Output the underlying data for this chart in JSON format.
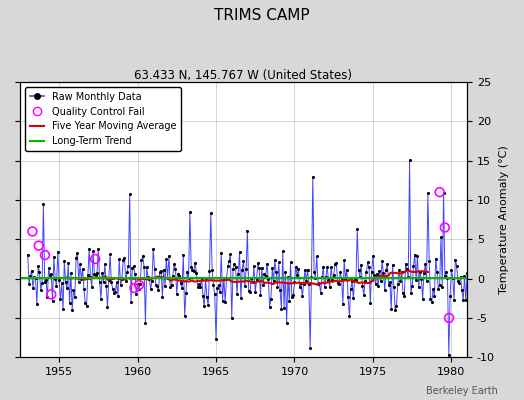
{
  "title": "TRIMS CAMP",
  "subtitle": "63.433 N, 145.767 W (United States)",
  "ylabel": "Temperature Anomaly (°C)",
  "watermark": "Berkeley Earth",
  "xlim": [
    1952.5,
    1981.0
  ],
  "ylim": [
    -10,
    25
  ],
  "yticks_left": [
    -10,
    -5,
    0,
    5,
    10,
    15,
    20,
    25
  ],
  "yticks_right": [
    -10,
    -5,
    0,
    5,
    10,
    15,
    20,
    25
  ],
  "xticks": [
    1955,
    1960,
    1965,
    1970,
    1975,
    1980
  ],
  "bg_color": "#ffffff",
  "fig_bg": "#d8d8d8",
  "raw_color": "#4444ff",
  "ma_color": "#dd0000",
  "trend_color": "#00bb00",
  "qc_color": "#ff00ff",
  "seed": 7
}
